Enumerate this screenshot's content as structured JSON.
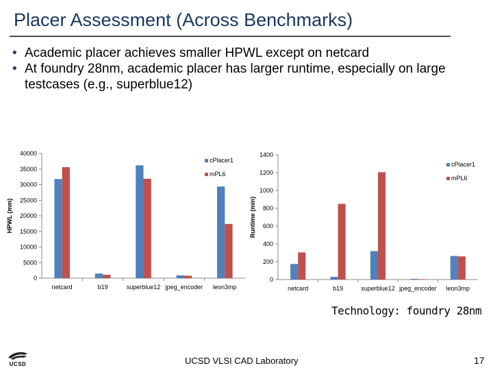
{
  "slide": {
    "title": "Placer Assessment (Across Benchmarks)",
    "bullets": [
      "Academic placer achieves smaller HPWL except on netcard",
      "At foundry 28nm, academic placer has larger runtime, especially on large testcases (e.g., superblue12)"
    ],
    "technology_note": "Technology: foundry 28nm",
    "footer": "UCSD VLSI CAD Laboratory",
    "page_number": "17",
    "logo_text": "UCSD"
  },
  "chart_data": [
    {
      "type": "bar",
      "title": "",
      "ylabel": "HPWL (mm)",
      "xlabel": "",
      "ylim": [
        0,
        40000
      ],
      "yticks": [
        0,
        5000,
        10000,
        15000,
        20000,
        25000,
        30000,
        35000,
        40000
      ],
      "categories": [
        "netcard",
        "b19",
        "superblue12",
        "jpeg_encoder",
        "leon3mp"
      ],
      "series": [
        {
          "name": "cPlacer1",
          "color": "#4f81bd",
          "values": [
            31800,
            1500,
            36200,
            900,
            29400
          ]
        },
        {
          "name": "mPL6",
          "color": "#c0504d",
          "values": [
            35600,
            1100,
            31900,
            800,
            17400
          ]
        }
      ],
      "legend": "top-right",
      "grid": false
    },
    {
      "type": "bar",
      "title": "",
      "ylabel": "Runtime (min)",
      "xlabel": "",
      "ylim": [
        0,
        1400
      ],
      "yticks": [
        0,
        200,
        400,
        600,
        800,
        1000,
        1200,
        1400
      ],
      "categories": [
        "netcard",
        "b19",
        "superblue12",
        "jpeg_encoder",
        "leon3mp"
      ],
      "series": [
        {
          "name": "cPlacer1",
          "color": "#4f81bd",
          "values": [
            175,
            30,
            320,
            8,
            265
          ]
        },
        {
          "name": "mPL6",
          "color": "#c0504d",
          "values": [
            305,
            850,
            1205,
            5,
            260
          ]
        }
      ],
      "legend": "top-right",
      "grid": false
    }
  ]
}
